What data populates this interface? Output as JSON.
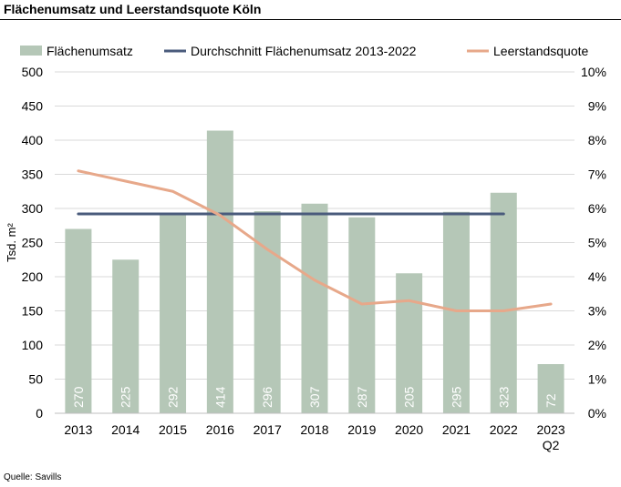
{
  "title": "Flächenumsatz und Leerstandsquote Köln",
  "source": "Quelle: Savills",
  "chart_data": {
    "type": "bar",
    "categories": [
      "2013",
      "2014",
      "2015",
      "2016",
      "2017",
      "2018",
      "2019",
      "2020",
      "2021",
      "2022",
      "2023\nQ2"
    ],
    "series": [
      {
        "name": "Flächenumsatz",
        "kind": "bar",
        "axis": "left",
        "color": "#b5c7b7",
        "values": [
          270,
          225,
          292,
          414,
          296,
          307,
          287,
          205,
          295,
          323,
          72
        ],
        "data_labels": [
          "270",
          "225",
          "292",
          "414",
          "296",
          "307",
          "287",
          "205",
          "295",
          "323",
          "72"
        ]
      },
      {
        "name": "Durchschnitt Flächenumsatz 2013-2022",
        "kind": "line",
        "axis": "left",
        "color": "#4a5b7c",
        "values": [
          292,
          292,
          292,
          292,
          292,
          292,
          292,
          292,
          292,
          292,
          null
        ]
      },
      {
        "name": "Leerstandsquote",
        "kind": "line",
        "axis": "right",
        "color": "#e7a88a",
        "values": [
          7.1,
          6.8,
          6.5,
          5.8,
          4.8,
          3.9,
          3.2,
          3.3,
          3.0,
          3.0,
          3.2
        ]
      }
    ],
    "ylabel": "Tsd. m²",
    "ylim": [
      0,
      500
    ],
    "yticks": [
      "0",
      "50",
      "100",
      "150",
      "200",
      "250",
      "300",
      "350",
      "400",
      "450",
      "500"
    ],
    "y2lim": [
      0,
      10
    ],
    "y2ticks": [
      "0%",
      "1%",
      "2%",
      "3%",
      "4%",
      "5%",
      "6%",
      "7%",
      "8%",
      "9%",
      "10%"
    ],
    "grid": true,
    "legend_position": "top"
  }
}
